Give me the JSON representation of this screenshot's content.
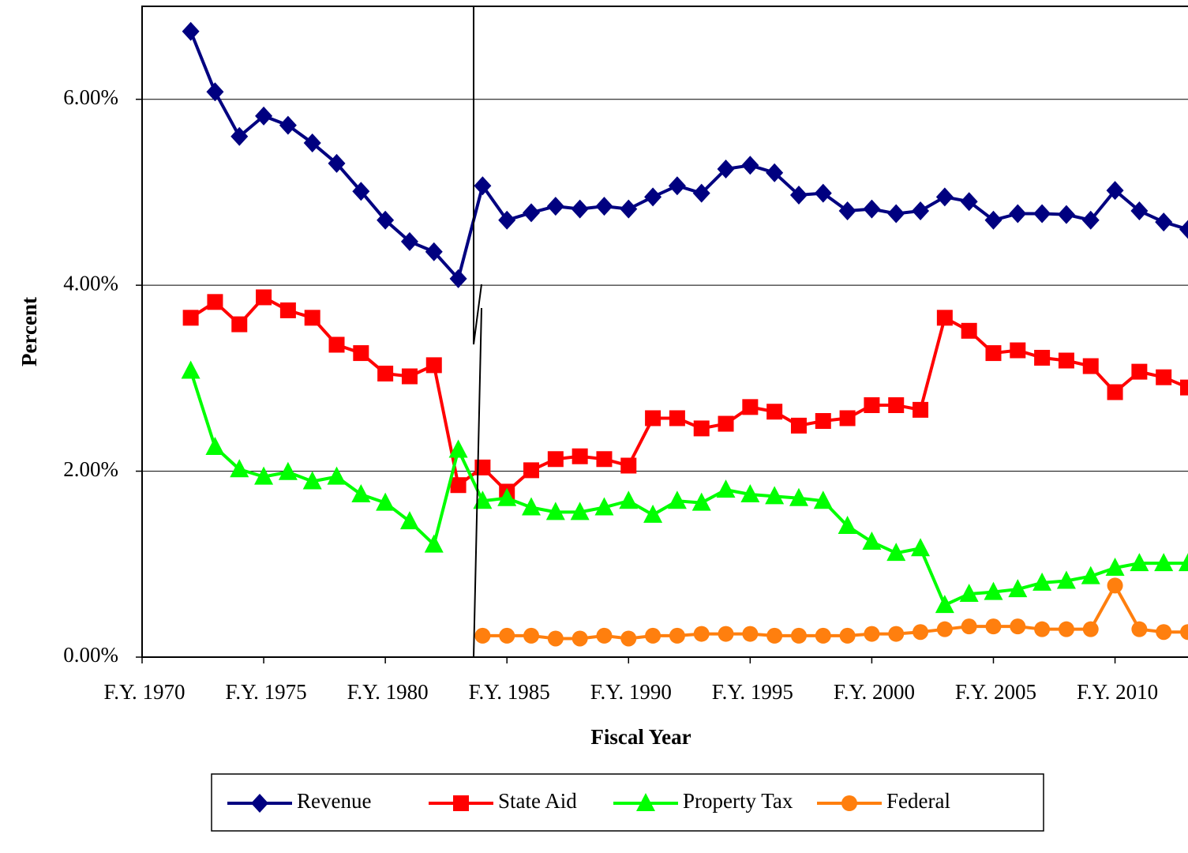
{
  "chart_data": {
    "type": "line",
    "x_label": "Fiscal Year",
    "y_label": "Percent",
    "x": [
      1972,
      1973,
      1974,
      1975,
      1976,
      1977,
      1978,
      1979,
      1980,
      1981,
      1982,
      1983,
      1984,
      1985,
      1986,
      1987,
      1988,
      1989,
      1990,
      1991,
      1992,
      1993,
      1994,
      1995,
      1996,
      1997,
      1998,
      1999,
      2000,
      2001,
      2002,
      2003,
      2004,
      2005,
      2006,
      2007,
      2008,
      2009,
      2010,
      2011,
      2012,
      2013
    ],
    "xlim": [
      1970,
      2013
    ],
    "xticks": [
      {
        "value": 1970,
        "label": "F.Y. 1970"
      },
      {
        "value": 1975,
        "label": "F.Y. 1975"
      },
      {
        "value": 1980,
        "label": "F.Y. 1980"
      },
      {
        "value": 1985,
        "label": "F.Y. 1985"
      },
      {
        "value": 1990,
        "label": "F.Y. 1990"
      },
      {
        "value": 1995,
        "label": "F.Y. 1995"
      },
      {
        "value": 2000,
        "label": "F.Y. 2000"
      },
      {
        "value": 2005,
        "label": "F.Y. 2005"
      },
      {
        "value": 2010,
        "label": "F.Y. 2010"
      }
    ],
    "ylim": [
      0,
      7
    ],
    "yticks": [
      {
        "value": 0,
        "label": "0.00%"
      },
      {
        "value": 2,
        "label": "2.00%"
      },
      {
        "value": 4,
        "label": "4.00%"
      },
      {
        "value": 6,
        "label": "6.00%"
      }
    ],
    "grid": true,
    "legend": "bottom",
    "series": [
      {
        "name": "Revenue",
        "color": "#000080",
        "marker": "diamond",
        "values": [
          6.73,
          6.08,
          5.6,
          5.82,
          5.72,
          5.53,
          5.31,
          5.01,
          4.7,
          4.47,
          4.36,
          4.07,
          5.07,
          4.7,
          4.78,
          4.85,
          4.82,
          4.85,
          4.82,
          4.95,
          5.07,
          4.99,
          5.25,
          5.29,
          5.21,
          4.97,
          4.99,
          4.8,
          4.82,
          4.77,
          4.8,
          4.95,
          4.9,
          4.7,
          4.77,
          4.77,
          4.76,
          4.7,
          5.02,
          4.8,
          4.68,
          4.6
        ]
      },
      {
        "name": "State Aid",
        "color": "#ff0000",
        "marker": "square",
        "values": [
          3.65,
          3.82,
          3.58,
          3.87,
          3.73,
          3.65,
          3.36,
          3.27,
          3.05,
          3.02,
          3.14,
          1.85,
          2.04,
          1.78,
          2.01,
          2.13,
          2.16,
          2.13,
          2.06,
          2.57,
          2.57,
          2.46,
          2.51,
          2.69,
          2.64,
          2.49,
          2.54,
          2.57,
          2.71,
          2.71,
          2.66,
          3.65,
          3.51,
          3.27,
          3.3,
          3.22,
          3.19,
          3.13,
          2.85,
          3.07,
          3.01,
          2.9
        ]
      },
      {
        "name": "Property Tax",
        "color": "#00ff00",
        "marker": "triangle",
        "values": [
          3.08,
          2.26,
          2.02,
          1.94,
          1.99,
          1.89,
          1.94,
          1.75,
          1.66,
          1.46,
          1.21,
          2.23,
          1.68,
          1.71,
          1.61,
          1.56,
          1.56,
          1.61,
          1.68,
          1.53,
          1.68,
          1.66,
          1.8,
          1.75,
          1.73,
          1.71,
          1.68,
          1.41,
          1.24,
          1.12,
          1.17,
          0.56,
          0.68,
          0.7,
          0.73,
          0.8,
          0.82,
          0.87,
          0.96,
          1.01,
          1.01,
          1.01
        ]
      },
      {
        "name": "Federal",
        "color": "#ff7f0e",
        "marker": "circle",
        "values": [
          null,
          null,
          null,
          null,
          null,
          null,
          null,
          null,
          null,
          null,
          null,
          null,
          0.23,
          0.23,
          0.23,
          0.2,
          0.2,
          0.23,
          0.2,
          0.23,
          0.23,
          0.25,
          0.25,
          0.25,
          0.23,
          0.23,
          0.23,
          0.23,
          0.25,
          0.25,
          0.27,
          0.3,
          0.33,
          0.33,
          0.33,
          0.3,
          0.3,
          0.3,
          0.77,
          0.3,
          0.27,
          0.27
        ]
      }
    ]
  }
}
